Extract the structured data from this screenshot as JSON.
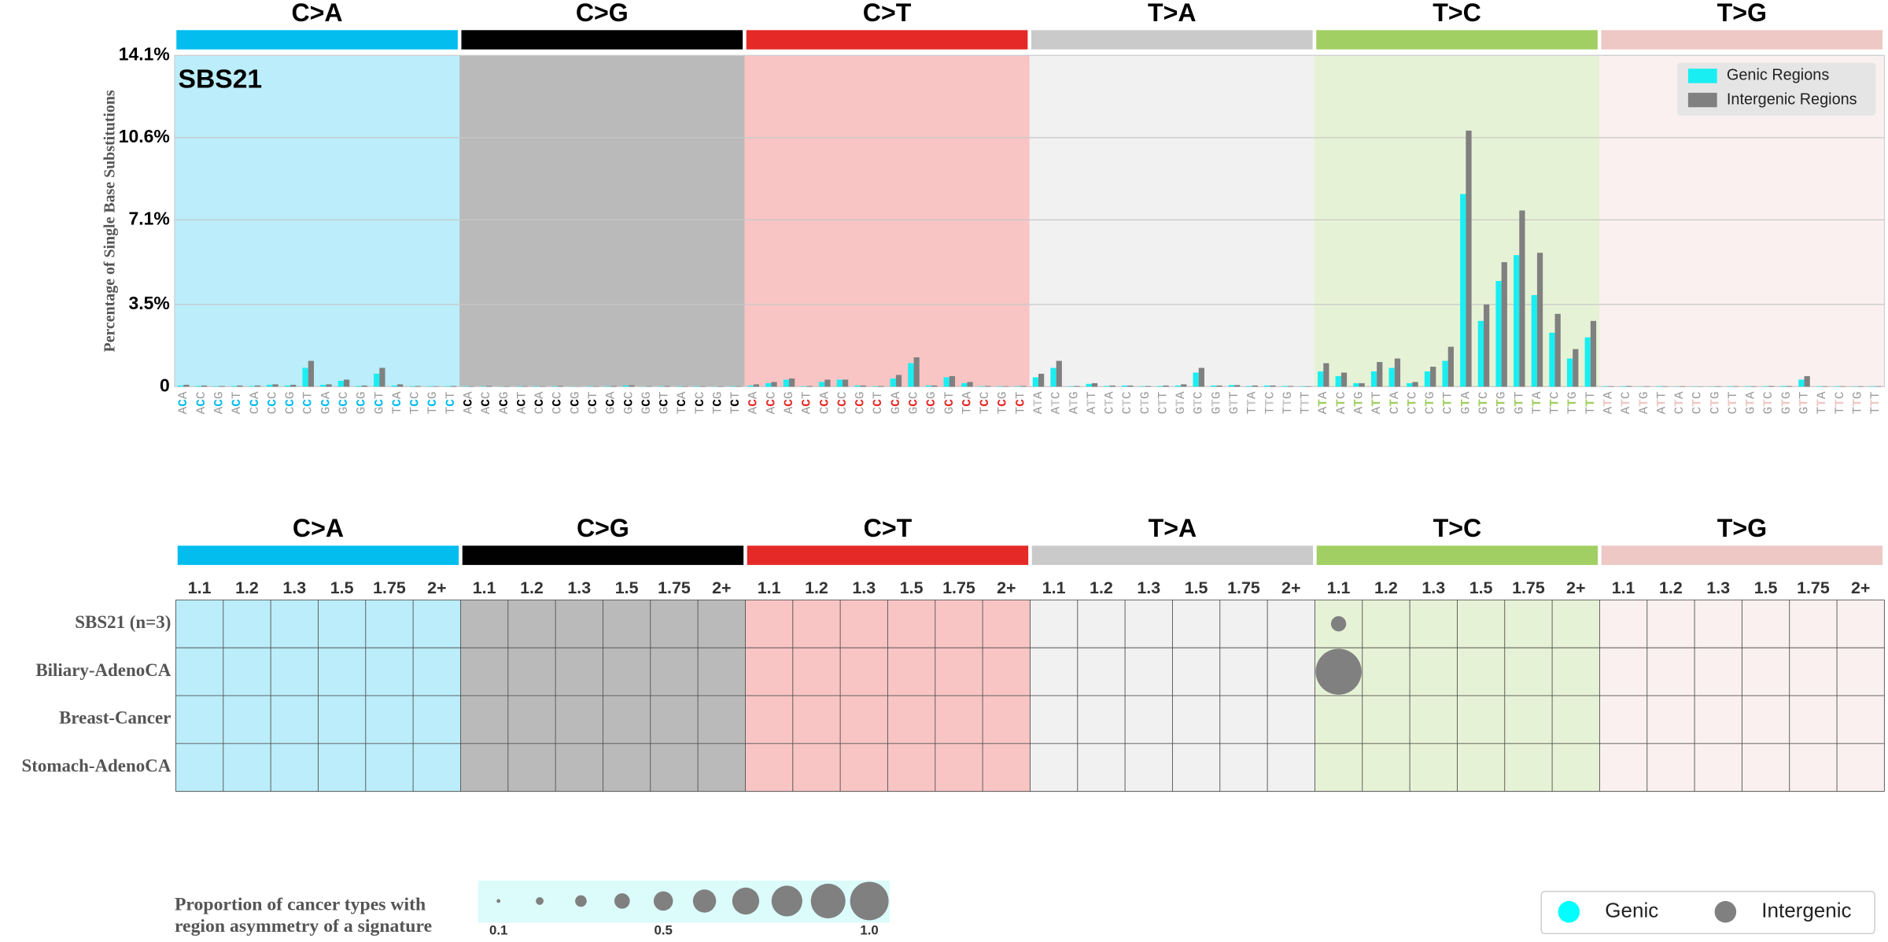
{
  "chart_data": [
    {
      "type": "bar",
      "title": "SBS21",
      "ylabel": "Percentage of Single Base Substitutions",
      "groups": [
        "C>A",
        "C>G",
        "C>T",
        "T>A",
        "T>C",
        "T>G"
      ],
      "group_colors": [
        "#03bdee",
        "#010101",
        "#e42926",
        "#cbcacb",
        "#a1cf63",
        "#edc8c5"
      ],
      "categories": [
        "ACA",
        "ACC",
        "ACG",
        "ACT",
        "CCA",
        "CCC",
        "CCG",
        "CCT",
        "GCA",
        "GCC",
        "GCG",
        "GCT",
        "TCA",
        "TCC",
        "TCG",
        "TCT",
        "ACA",
        "ACC",
        "ACG",
        "ACT",
        "CCA",
        "CCC",
        "CCG",
        "CCT",
        "GCA",
        "GCC",
        "GCG",
        "GCT",
        "TCA",
        "TCC",
        "TCG",
        "TCT",
        "ACA",
        "ACC",
        "ACG",
        "ACT",
        "CCA",
        "CCC",
        "CCG",
        "CCT",
        "GCA",
        "GCC",
        "GCG",
        "GCT",
        "TCA",
        "TCC",
        "TCG",
        "TCT",
        "ATA",
        "ATC",
        "ATG",
        "ATT",
        "CTA",
        "CTC",
        "CTG",
        "CTT",
        "GTA",
        "GTC",
        "GTG",
        "GTT",
        "TTA",
        "TTC",
        "TTG",
        "TTT",
        "ATA",
        "ATC",
        "ATG",
        "ATT",
        "CTA",
        "CTC",
        "CTG",
        "CTT",
        "GTA",
        "GTC",
        "GTG",
        "GTT",
        "TTA",
        "TTC",
        "TTG",
        "TTT",
        "ATA",
        "ATC",
        "ATG",
        "ATT",
        "CTA",
        "CTC",
        "CTG",
        "CTT",
        "GTA",
        "GTC",
        "GTG",
        "GTT",
        "TTA",
        "TTC",
        "TTG",
        "TTT"
      ],
      "series": [
        {
          "name": "Genic Regions",
          "color": "#19eef2",
          "values": [
            0.05,
            0.03,
            0.02,
            0.03,
            0.03,
            0.08,
            0.05,
            0.8,
            0.08,
            0.25,
            0.03,
            0.55,
            0.05,
            0.02,
            0.02,
            0.02,
            0.02,
            0.02,
            0.01,
            0.02,
            0.02,
            0.02,
            0.01,
            0.02,
            0.02,
            0.05,
            0.01,
            0.02,
            0.02,
            0.02,
            0.01,
            0.02,
            0.05,
            0.15,
            0.3,
            0.02,
            0.2,
            0.3,
            0.05,
            0.02,
            0.35,
            1.0,
            0.05,
            0.4,
            0.15,
            0.02,
            0.02,
            0.02,
            0.4,
            0.8,
            0.02,
            0.12,
            0.03,
            0.05,
            0.02,
            0.03,
            0.05,
            0.6,
            0.05,
            0.07,
            0.03,
            0.05,
            0.03,
            0.02,
            0.65,
            0.45,
            0.15,
            0.65,
            0.8,
            0.15,
            0.65,
            1.1,
            8.2,
            2.8,
            4.5,
            5.6,
            3.9,
            2.3,
            1.2,
            2.1,
            0.02,
            0.02,
            0.01,
            0.02,
            0.01,
            0.01,
            0.01,
            0.02,
            0.02,
            0.02,
            0.03,
            0.3,
            0.02,
            0.02,
            0.01,
            0.02
          ]
        },
        {
          "name": "Intergenic Regions",
          "color": "#808080",
          "values": [
            0.08,
            0.05,
            0.03,
            0.05,
            0.05,
            0.1,
            0.08,
            1.1,
            0.1,
            0.3,
            0.05,
            0.8,
            0.1,
            0.03,
            0.02,
            0.03,
            0.02,
            0.03,
            0.02,
            0.02,
            0.02,
            0.03,
            0.01,
            0.02,
            0.03,
            0.06,
            0.02,
            0.03,
            0.02,
            0.02,
            0.02,
            0.02,
            0.1,
            0.2,
            0.35,
            0.03,
            0.3,
            0.3,
            0.05,
            0.03,
            0.5,
            1.25,
            0.05,
            0.45,
            0.2,
            0.03,
            0.02,
            0.03,
            0.55,
            1.1,
            0.03,
            0.15,
            0.05,
            0.05,
            0.03,
            0.05,
            0.1,
            0.8,
            0.05,
            0.07,
            0.05,
            0.05,
            0.03,
            0.02,
            1.0,
            0.6,
            0.15,
            1.05,
            1.2,
            0.2,
            0.85,
            1.7,
            10.9,
            3.5,
            5.3,
            7.5,
            5.7,
            3.1,
            1.6,
            2.8,
            0.02,
            0.03,
            0.02,
            0.02,
            0.02,
            0.01,
            0.02,
            0.02,
            0.02,
            0.03,
            0.03,
            0.45,
            0.02,
            0.02,
            0.02,
            0.02
          ]
        }
      ],
      "ylim": [
        0,
        14.1
      ],
      "yticks": [
        0,
        {
          "value": 3.5,
          "label": "3.5%"
        },
        {
          "value": 7.1,
          "label": "7.1%"
        },
        {
          "value": 10.6,
          "label": "10.6%"
        },
        {
          "value": 14.1,
          "label": "14.1%"
        }
      ],
      "grid": true,
      "legend": "upper right"
    },
    {
      "type": "bubble_grid",
      "groups": [
        "C>A",
        "C>G",
        "C>T",
        "T>A",
        "T>C",
        "T>G"
      ],
      "group_colors": [
        "#03bdee",
        "#010101",
        "#e42926",
        "#cbcacb",
        "#a1cf63",
        "#edc8c5"
      ],
      "columns": [
        "1.1",
        "1.2",
        "1.3",
        "1.5",
        "1.75",
        "2+"
      ],
      "rows": [
        "SBS21 (n=3)",
        "Biliary-AdenoCA",
        "Breast-Cancer",
        "Stomach-AdenoCA"
      ],
      "series": [
        {
          "name": "Genic",
          "color": "#00ffff",
          "values": [
            [
              null,
              null,
              null,
              null,
              null,
              null,
              null,
              null,
              null,
              null,
              null,
              null,
              null,
              null,
              null,
              null,
              null,
              null,
              null,
              null,
              null,
              null,
              null,
              null,
              null,
              null,
              null,
              null,
              null,
              null,
              null,
              null,
              null,
              null,
              null,
              null
            ],
            [
              null,
              null,
              null,
              null,
              null,
              null,
              null,
              null,
              null,
              null,
              null,
              null,
              null,
              null,
              null,
              null,
              null,
              null,
              null,
              null,
              null,
              null,
              null,
              null,
              null,
              null,
              null,
              null,
              null,
              null,
              null,
              null,
              null,
              null,
              null,
              null
            ],
            [
              null,
              null,
              null,
              null,
              null,
              null,
              null,
              null,
              null,
              null,
              null,
              null,
              null,
              null,
              null,
              null,
              null,
              null,
              null,
              null,
              null,
              null,
              null,
              null,
              null,
              null,
              null,
              null,
              null,
              null,
              null,
              null,
              null,
              null,
              null,
              null
            ],
            [
              null,
              null,
              null,
              null,
              null,
              null,
              null,
              null,
              null,
              null,
              null,
              null,
              null,
              null,
              null,
              null,
              null,
              null,
              null,
              null,
              null,
              null,
              null,
              null,
              null,
              null,
              null,
              null,
              null,
              null,
              null,
              null,
              null,
              null,
              null,
              null
            ]
          ]
        },
        {
          "name": "Intergenic",
          "color": "#808080",
          "values": [
            [
              null,
              null,
              null,
              null,
              null,
              null,
              null,
              null,
              null,
              null,
              null,
              null,
              null,
              null,
              null,
              null,
              null,
              null,
              null,
              null,
              null,
              null,
              null,
              null,
              0.33,
              null,
              null,
              null,
              null,
              null,
              null,
              null,
              null,
              null,
              null,
              null
            ],
            [
              null,
              null,
              null,
              null,
              null,
              null,
              null,
              null,
              null,
              null,
              null,
              null,
              null,
              null,
              null,
              null,
              null,
              null,
              null,
              null,
              null,
              null,
              null,
              null,
              1.0,
              null,
              null,
              null,
              null,
              null,
              null,
              null,
              null,
              null,
              null,
              null
            ],
            [
              null,
              null,
              null,
              null,
              null,
              null,
              null,
              null,
              null,
              null,
              null,
              null,
              null,
              null,
              null,
              null,
              null,
              null,
              null,
              null,
              null,
              null,
              null,
              null,
              null,
              null,
              null,
              null,
              null,
              null,
              null,
              null,
              null,
              null,
              null,
              null
            ],
            [
              null,
              null,
              null,
              null,
              null,
              null,
              null,
              null,
              null,
              null,
              null,
              null,
              null,
              null,
              null,
              null,
              null,
              null,
              null,
              null,
              null,
              null,
              null,
              null,
              null,
              null,
              null,
              null,
              null,
              null,
              null,
              null,
              null,
              null,
              null,
              null
            ]
          ]
        }
      ],
      "size_legend": {
        "title": [
          "Proportion of cancer types with",
          "region asymmetry of a signature"
        ],
        "sizes": [
          0.1,
          0.2,
          0.3,
          0.4,
          0.5,
          0.6,
          0.7,
          0.8,
          0.9,
          1.0
        ],
        "ticks": [
          0.1,
          0.5,
          {
            "value": 1.0,
            "label": "1.0"
          }
        ]
      },
      "legend": "lower right"
    }
  ]
}
